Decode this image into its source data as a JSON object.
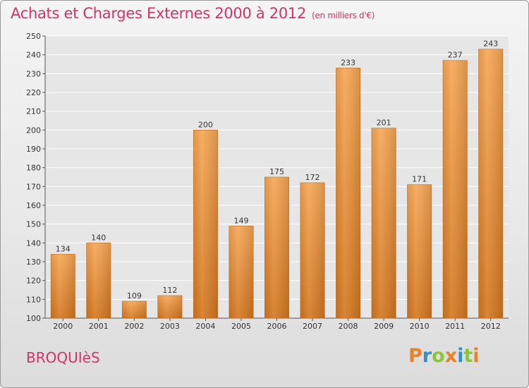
{
  "title": "Achats et Charges Externes 2000 à 2012",
  "unit_note": "(en milliers d'€)",
  "town": "BROQUIèS",
  "logo": {
    "text": "Proxiti",
    "letters": [
      {
        "char": "P",
        "color": "#e8812c"
      },
      {
        "char": "r",
        "color": "#2f8fd0"
      },
      {
        "char": "o",
        "color": "#8cc43f"
      },
      {
        "char": "x",
        "color": "#e8812c"
      },
      {
        "char": "i",
        "color": "#2f8fd0"
      },
      {
        "char": "t",
        "color": "#8cc43f"
      },
      {
        "char": "i",
        "color": "#e8812c"
      }
    ]
  },
  "colors": {
    "title": "#d0346a",
    "bar_light": "#f6a654",
    "bar_dark": "#d4761f",
    "grid": "#ffffff"
  },
  "chart_data": {
    "type": "bar",
    "title": "Achats et Charges Externes 2000 à 2012",
    "subtitle": "(en milliers d'€)",
    "categories": [
      "2000",
      "2001",
      "2002",
      "2003",
      "2004",
      "2005",
      "2006",
      "2007",
      "2008",
      "2009",
      "2010",
      "2011",
      "2012"
    ],
    "values": [
      134,
      140,
      109,
      112,
      200,
      149,
      175,
      172,
      233,
      201,
      171,
      237,
      243
    ],
    "ylim": [
      100,
      250
    ],
    "yticks": [
      100,
      110,
      120,
      130,
      140,
      150,
      160,
      170,
      180,
      190,
      200,
      210,
      220,
      230,
      240,
      250
    ],
    "xlabel": "",
    "ylabel": "",
    "grid": true,
    "legend": "none"
  }
}
